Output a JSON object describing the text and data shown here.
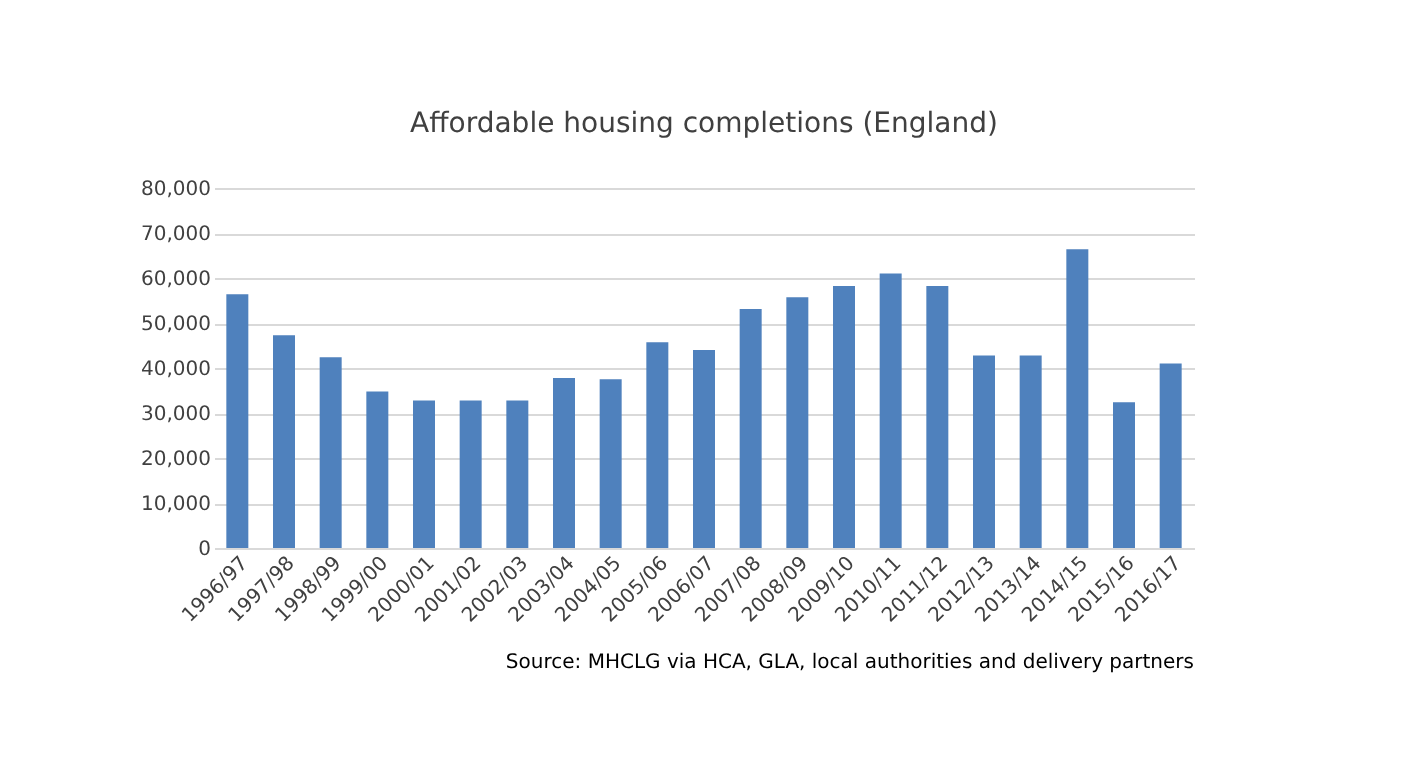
{
  "chart_data": {
    "type": "bar",
    "title": "Affordable housing completions (England)",
    "categories": [
      "1996/97",
      "1997/98",
      "1998/99",
      "1999/00",
      "2000/01",
      "2001/02",
      "2002/03",
      "2003/04",
      "2004/05",
      "2005/06",
      "2006/07",
      "2007/08",
      "2008/09",
      "2009/10",
      "2010/11",
      "2011/12",
      "2012/13",
      "2013/14",
      "2014/15",
      "2015/16",
      "2016/17"
    ],
    "values": [
      56400,
      47300,
      42400,
      34800,
      32800,
      32800,
      32800,
      37800,
      37500,
      45700,
      44000,
      53100,
      55700,
      58200,
      61000,
      58200,
      42800,
      42800,
      66400,
      32400,
      41000
    ],
    "color": "#4f81bd",
    "ylim": [
      0,
      80000
    ],
    "yticks": [
      {
        "value": 0,
        "label": "0"
      },
      {
        "value": 10000,
        "label": "10,000"
      },
      {
        "value": 20000,
        "label": "20,000"
      },
      {
        "value": 30000,
        "label": "30,000"
      },
      {
        "value": 40000,
        "label": "40,000"
      },
      {
        "value": 50000,
        "label": "50,000"
      },
      {
        "value": 60000,
        "label": "60,000"
      },
      {
        "value": 70000,
        "label": "70,000"
      },
      {
        "value": 80000,
        "label": "80,000"
      }
    ],
    "grid": "y",
    "annotations": [
      "Source: MHCLG via HCA, GLA, local authorities and delivery partners"
    ]
  }
}
